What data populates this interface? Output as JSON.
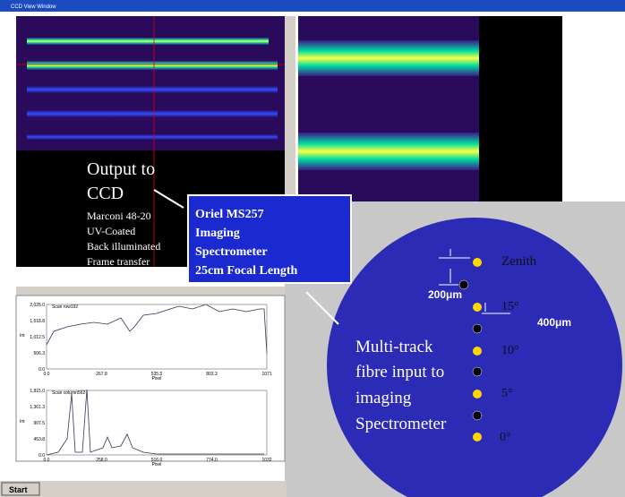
{
  "window": {
    "title": "CCD View Window"
  },
  "ccd": {
    "heading": [
      "Output to",
      "CCD"
    ],
    "details": [
      "Marconi 48-20",
      "UV-Coated",
      "Back illuminated",
      "Frame transfer"
    ]
  },
  "spectrometer": {
    "lines": [
      "Oriel MS257",
      "Imaging",
      "Spectrometer",
      "25cm Focal Length"
    ]
  },
  "fibre": {
    "labels": [
      "Zenith",
      "15°",
      "10°",
      "5°",
      "0°"
    ],
    "spacing": [
      "200μm",
      "400μm"
    ],
    "caption": [
      "Multi-track",
      "fibre input to",
      "imaging",
      "Spectrometer"
    ]
  },
  "plots": [
    {
      "title": "Scan row192",
      "yticks": [
        "2,025.0",
        "1,518.8",
        "1,012.5",
        "506.3",
        "0.0"
      ],
      "xticks": [
        "0.0",
        "267.8",
        "535.5",
        "803.3",
        "1071"
      ],
      "xlabel": "Pixel",
      "ylabel": "Int"
    },
    {
      "title": "Scan column562",
      "yticks": [
        "1,815.0",
        "1,361.3",
        "907.5",
        "453.8",
        "0.0"
      ],
      "xticks": [
        "0.0",
        "258.0",
        "516.0",
        "774.0",
        "1032"
      ],
      "xlabel": "Pixel",
      "ylabel": "Int"
    }
  ],
  "taskbar": {
    "start": "Start"
  }
}
